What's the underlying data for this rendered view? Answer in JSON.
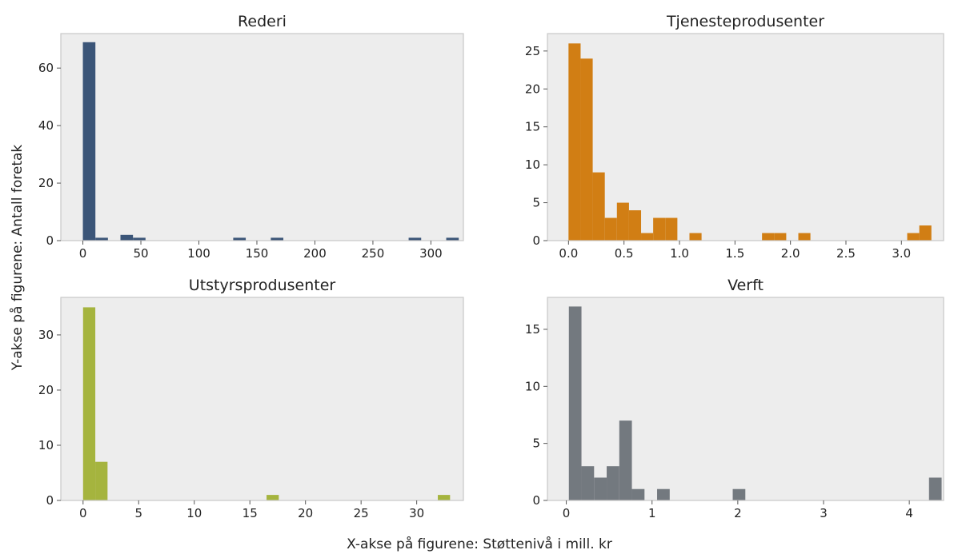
{
  "figure": {
    "xlabel": "X-akse på figurene: Støttenivå i mill. kr",
    "ylabel": "Y-akse på figurene: Antall foretak"
  },
  "chart_data": [
    {
      "type": "bar",
      "title": "Rederi",
      "color": "#3b5578",
      "xlim": [
        -19,
        328
      ],
      "ylim": [
        0,
        72
      ],
      "xticks": [
        0,
        50,
        100,
        150,
        200,
        250,
        300
      ],
      "yticks": [
        0,
        20,
        40,
        60
      ],
      "bin_width": 10.8,
      "bins": [
        [
          0,
          69
        ],
        [
          10.8,
          1
        ],
        [
          32.4,
          2
        ],
        [
          43.2,
          1
        ],
        [
          129.6,
          1
        ],
        [
          162,
          1
        ],
        [
          280.8,
          1
        ],
        [
          313.2,
          1
        ]
      ]
    },
    {
      "type": "bar",
      "title": "Tjenesteprodusenter",
      "color": "#d17e14",
      "xlim": [
        -0.19,
        3.38
      ],
      "ylim": [
        0,
        27.3
      ],
      "xticks": [
        0.0,
        0.5,
        1.0,
        1.5,
        2.0,
        2.5,
        3.0
      ],
      "yticks": [
        0,
        5,
        10,
        15,
        20,
        25
      ],
      "bin_width": 0.109,
      "bins": [
        [
          0,
          26
        ],
        [
          0.109,
          24
        ],
        [
          0.218,
          9
        ],
        [
          0.327,
          3
        ],
        [
          0.436,
          5
        ],
        [
          0.545,
          4
        ],
        [
          0.654,
          1
        ],
        [
          0.763,
          3
        ],
        [
          0.872,
          3
        ],
        [
          1.09,
          1
        ],
        [
          1.744,
          1
        ],
        [
          1.853,
          1
        ],
        [
          2.071,
          1
        ],
        [
          3.052,
          1
        ],
        [
          3.161,
          2
        ]
      ]
    },
    {
      "type": "bar",
      "title": "Utstyrsprodusenter",
      "color": "#a5b43e",
      "xlim": [
        -2.0,
        34.2
      ],
      "ylim": [
        0,
        36.8
      ],
      "xticks": [
        0,
        5,
        10,
        15,
        20,
        25,
        30
      ],
      "yticks": [
        0,
        10,
        20,
        30
      ],
      "bin_width": 1.1,
      "bins": [
        [
          0,
          35
        ],
        [
          1.1,
          7
        ],
        [
          16.5,
          1
        ],
        [
          31.9,
          1
        ]
      ]
    },
    {
      "type": "bar",
      "title": "Verft",
      "color": "#73797f",
      "xlim": [
        -0.22,
        4.4
      ],
      "ylim": [
        0,
        17.8
      ],
      "xticks": [
        0,
        1,
        2,
        3,
        4
      ],
      "yticks": [
        0,
        5,
        10,
        15
      ],
      "bin_width": 0.147,
      "bins": [
        [
          0.03,
          17
        ],
        [
          0.177,
          3
        ],
        [
          0.324,
          2
        ],
        [
          0.471,
          3
        ],
        [
          0.618,
          7
        ],
        [
          0.765,
          1
        ],
        [
          1.059,
          1
        ],
        [
          1.941,
          1
        ],
        [
          4.23,
          2
        ]
      ]
    }
  ]
}
